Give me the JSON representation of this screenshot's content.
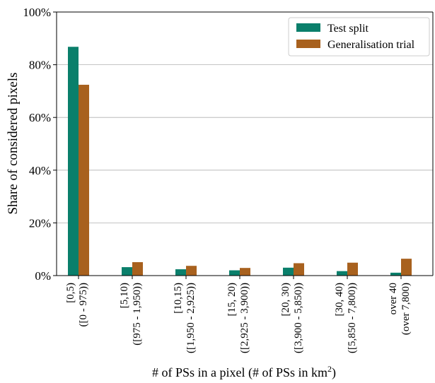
{
  "chart_data": {
    "type": "bar",
    "categories": [
      [
        "[0,5)",
        "([0 - 975))"
      ],
      [
        "[5,10)",
        "([975 - 1,950))"
      ],
      [
        "[10,15)",
        "([1,950 - 2,925))"
      ],
      [
        "[15, 20)",
        "([2,925 - 3,900))"
      ],
      [
        "[20, 30)",
        "([3,900 - 5,850))"
      ],
      [
        "[30, 40)",
        "([5,850 - 7,800))"
      ],
      [
        "over 40",
        "(over 7,800)"
      ]
    ],
    "series": [
      {
        "name": "Test split",
        "color": "#0a7f6b",
        "values": [
          0.868,
          0.032,
          0.024,
          0.02,
          0.03,
          0.017,
          0.011
        ]
      },
      {
        "name": "Generalisation trial",
        "color": "#a8611e",
        "values": [
          0.724,
          0.051,
          0.037,
          0.029,
          0.047,
          0.049,
          0.064
        ]
      }
    ],
    "ylabel": "Share of considered pixels",
    "xlabel": "# of PSs in a pixel (# of PSs in km",
    "xlabel_superscript": "2",
    "xlabel_suffix": ")",
    "ylim": [
      0,
      1
    ],
    "yticks": [
      "0%",
      "20%",
      "40%",
      "60%",
      "80%",
      "100%"
    ],
    "grid": "y",
    "legend": "top-right"
  }
}
